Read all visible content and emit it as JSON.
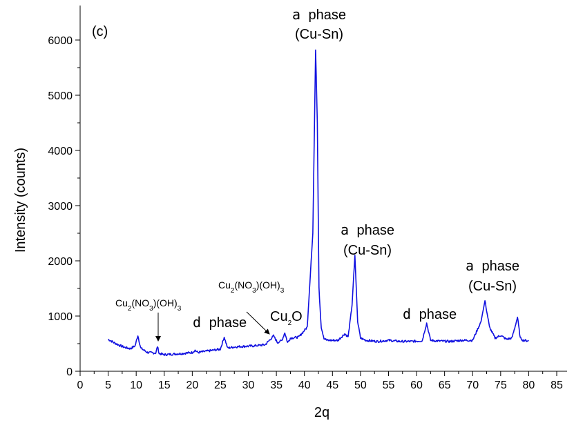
{
  "chart_data": {
    "type": "line",
    "panel_label": "(c)",
    "xlabel": "2q",
    "ylabel": "Intensity (counts)",
    "xlim": [
      0,
      85
    ],
    "ylim": [
      0,
      6500
    ],
    "xticks": [
      0,
      5,
      10,
      15,
      20,
      25,
      30,
      35,
      40,
      45,
      50,
      55,
      60,
      65,
      70,
      75,
      80,
      85
    ],
    "yticks": [
      0,
      1000,
      2000,
      3000,
      4000,
      5000,
      6000
    ],
    "grid": false,
    "line_color": "#1010e0",
    "series": [
      {
        "x": [
          5,
          6,
          7,
          8,
          9,
          9.8,
          10.3,
          10.8,
          12,
          13.5,
          13.8,
          14.1,
          15,
          16.5,
          18,
          20,
          20.5,
          21,
          23,
          25,
          25.7,
          26.3,
          27.5,
          29,
          31,
          33,
          34.5,
          35.2,
          36,
          36.5,
          37,
          37.5,
          39,
          40.5,
          41.5,
          42,
          42.3,
          42.6,
          43,
          43.5,
          44,
          46,
          47.2,
          47.8,
          48.5,
          49,
          49.5,
          50,
          51,
          53,
          55,
          57,
          59,
          61,
          61.8,
          62.5,
          63.5,
          66,
          68,
          70,
          71.5,
          72.2,
          73,
          74,
          75,
          76,
          77,
          77.5,
          78,
          78.5,
          79,
          80
        ],
        "y": [
          580,
          520,
          470,
          430,
          410,
          460,
          650,
          420,
          340,
          330,
          450,
          320,
          300,
          310,
          320,
          340,
          380,
          340,
          370,
          400,
          620,
          420,
          440,
          450,
          460,
          480,
          640,
          520,
          560,
          700,
          520,
          600,
          620,
          800,
          2500,
          5820,
          4500,
          1500,
          800,
          600,
          560,
          560,
          680,
          620,
          1200,
          2100,
          900,
          600,
          560,
          540,
          560,
          540,
          540,
          550,
          870,
          560,
          550,
          540,
          560,
          560,
          900,
          1280,
          800,
          600,
          650,
          580,
          600,
          780,
          980,
          600,
          560,
          550
        ]
      }
    ]
  },
  "annotations": {
    "alpha1": {
      "line1_sym": "a",
      "line1_text": "phase",
      "line2": "(Cu-Sn)"
    },
    "alpha2": {
      "line1_sym": "a",
      "line1_text": "phase",
      "line2": "(Cu-Sn)"
    },
    "alpha3": {
      "line1_sym": "a",
      "line1_text": "phase",
      "line2": "(Cu-Sn)"
    },
    "delta1": {
      "sym": "d",
      "text": "phase"
    },
    "delta2": {
      "sym": "d",
      "text": "phase"
    },
    "cu2o": {
      "base": "Cu",
      "sub": "2",
      "rest": "O"
    },
    "nitrate1": {
      "p1": "Cu",
      "s1": "2",
      "p2": "(NO",
      "s2": "3",
      "p3": ")(OH)",
      "s3": "3"
    },
    "nitrate2": {
      "p1": "Cu",
      "s1": "2",
      "p2": "(NO",
      "s2": "3",
      "p3": ")(OH)",
      "s3": "3"
    }
  }
}
